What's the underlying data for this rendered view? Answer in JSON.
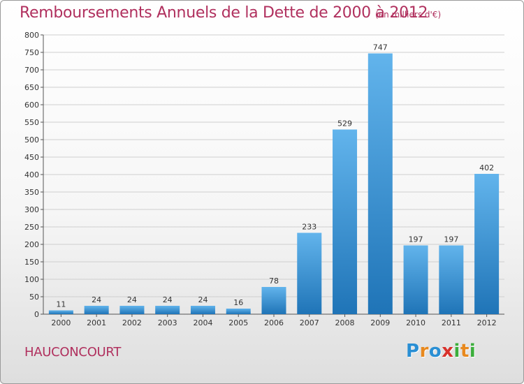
{
  "title": "Remboursements Annuels de la Dette de 2000 à 2012",
  "subtitle": "(en milliers d'€)",
  "commune": "HAUCONCOURT",
  "logo": {
    "letters": [
      "P",
      "r",
      "o",
      "x",
      "i",
      "t",
      "i"
    ],
    "colors": [
      "#2a8fd4",
      "#e8891e",
      "#2a8fd4",
      "#d8322c",
      "#3cae3c",
      "#e8891e",
      "#3cae3c"
    ]
  },
  "colors": {
    "bar_light": "#62b4ec",
    "bar_dark": "#1f74b7",
    "grid": "#cfcfcf",
    "axis": "#555555"
  },
  "chart_data": {
    "type": "bar",
    "title": "Remboursements Annuels de la Dette de 2000 à 2012",
    "subtitle": "(en milliers d'€)",
    "xlabel": "",
    "ylabel": "",
    "categories": [
      "2000",
      "2001",
      "2002",
      "2003",
      "2004",
      "2005",
      "2006",
      "2007",
      "2008",
      "2009",
      "2010",
      "2011",
      "2012"
    ],
    "values": [
      11,
      24,
      24,
      24,
      24,
      16,
      78,
      233,
      529,
      747,
      197,
      197,
      402
    ],
    "ylim": [
      0,
      800
    ],
    "yticks": [
      0,
      50,
      100,
      150,
      200,
      250,
      300,
      350,
      400,
      450,
      500,
      550,
      600,
      650,
      700,
      750,
      800
    ],
    "grid": true,
    "legend": "none"
  }
}
